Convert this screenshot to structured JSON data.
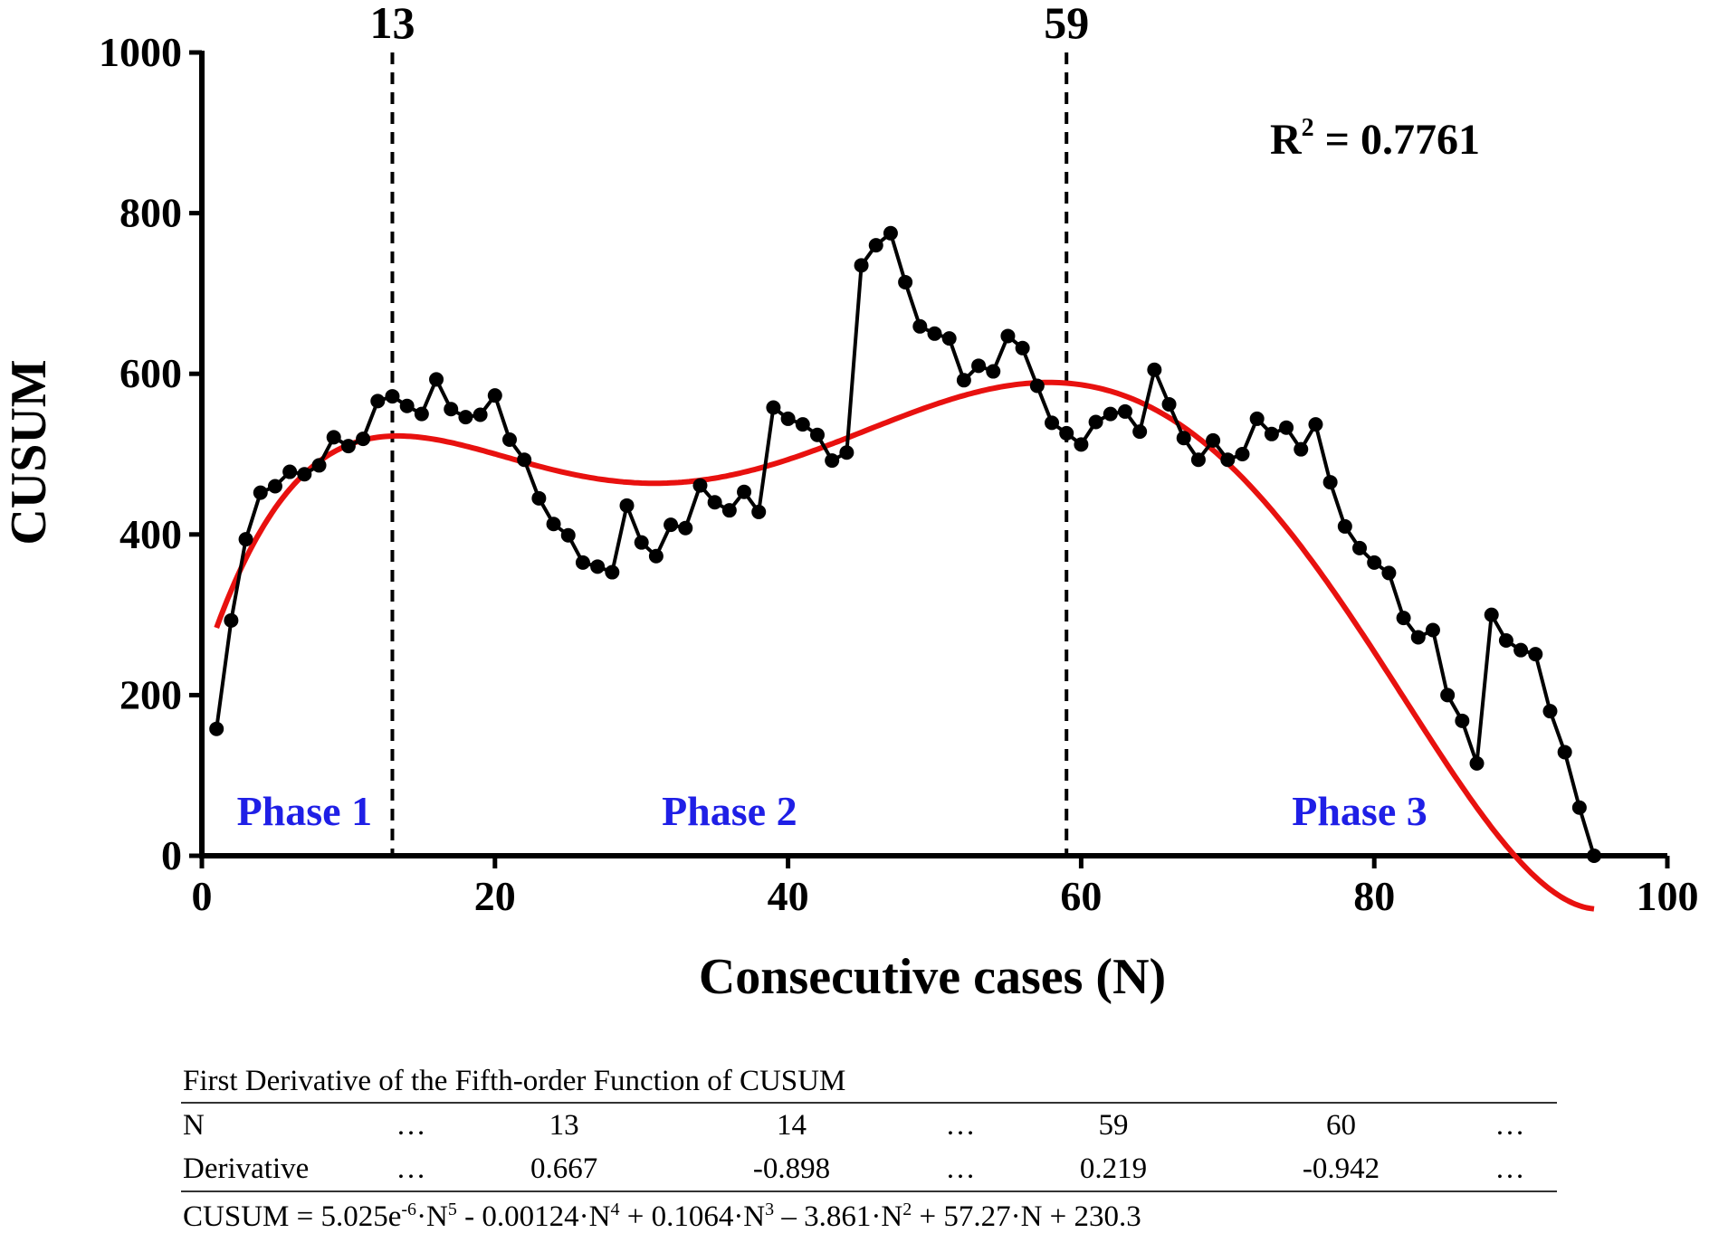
{
  "chart_data": {
    "type": "line",
    "xlabel": "Consecutive cases (N)",
    "ylabel": "CUSUM",
    "xlim": [
      0,
      100
    ],
    "ylim": [
      0,
      1000
    ],
    "xticks": [
      0,
      20,
      40,
      60,
      80,
      100
    ],
    "yticks": [
      0,
      200,
      400,
      600,
      800,
      1000
    ],
    "grid": false,
    "series": [
      {
        "color": "#000000",
        "marker": "circle",
        "x": [
          1,
          2,
          3,
          4,
          5,
          6,
          7,
          8,
          9,
          10,
          11,
          12,
          13,
          14,
          15,
          16,
          17,
          18,
          19,
          20,
          21,
          22,
          23,
          24,
          25,
          26,
          27,
          28,
          29,
          30,
          31,
          32,
          33,
          34,
          35,
          36,
          37,
          38,
          39,
          40,
          41,
          42,
          43,
          44,
          45,
          46,
          47,
          48,
          49,
          50,
          51,
          52,
          53,
          54,
          55,
          56,
          57,
          58,
          59,
          60,
          61,
          62,
          63,
          64,
          65,
          66,
          67,
          68,
          69,
          70,
          71,
          72,
          73,
          74,
          75,
          76,
          77,
          78,
          79,
          80,
          81,
          82,
          83,
          84,
          85,
          86,
          87,
          88,
          89,
          90,
          91,
          92,
          93,
          94,
          95
        ],
        "y": [
          158,
          293,
          394,
          452,
          460,
          478,
          475,
          486,
          521,
          510,
          519,
          566,
          572,
          560,
          550,
          593,
          556,
          546,
          549,
          573,
          518,
          493,
          445,
          413,
          399,
          365,
          360,
          353,
          436,
          390,
          373,
          412,
          408,
          461,
          440,
          430,
          453,
          428,
          558,
          544,
          537,
          524,
          492,
          502,
          735,
          760,
          775,
          714,
          659,
          650,
          644,
          592,
          610,
          603,
          647,
          632,
          585,
          539,
          526,
          512,
          540,
          550,
          553,
          528,
          605,
          562,
          520,
          493,
          517,
          493,
          500,
          544,
          525,
          533,
          506,
          537,
          465,
          410,
          383,
          365,
          352,
          296,
          272,
          281,
          200,
          168,
          115,
          300,
          268,
          256,
          251,
          180,
          129,
          60,
          0
        ]
      },
      {
        "color": "#e8110f",
        "kind": "polynomial fit",
        "coefficients": [
          230.3,
          57.27,
          -3.861,
          0.1064,
          -0.00124,
          5.025e-06
        ],
        "x_range": [
          1,
          95
        ]
      }
    ],
    "vlines": [
      {
        "x": 13,
        "label": "13",
        "style": "dashed"
      },
      {
        "x": 59,
        "label": "59",
        "style": "dashed"
      }
    ],
    "annotations": {
      "r2": {
        "base": "R",
        "sup": "2",
        "text": " = 0.7761"
      },
      "phases": [
        {
          "label": "Phase 1",
          "x": 7
        },
        {
          "label": "Phase 2",
          "x": 36
        },
        {
          "label": "Phase 3",
          "x": 79
        }
      ]
    }
  },
  "table": {
    "caption": "First Derivative of the Fifth-order Function of CUSUM",
    "row_n": [
      "N",
      "…",
      "13",
      "14",
      "…",
      "59",
      "60",
      "…"
    ],
    "row_derivative": [
      "Derivative",
      "…",
      "0.667",
      "-0.898",
      "…",
      "0.219",
      "-0.942",
      "…"
    ],
    "formula_parts": [
      "CUSUM = 5.025e",
      "-6",
      "·N",
      "5",
      " - 0.00124·N",
      "4",
      " + 0.1064·N",
      "3",
      " – 3.861·N",
      "2",
      " + 57.27·N + 230.3"
    ]
  }
}
